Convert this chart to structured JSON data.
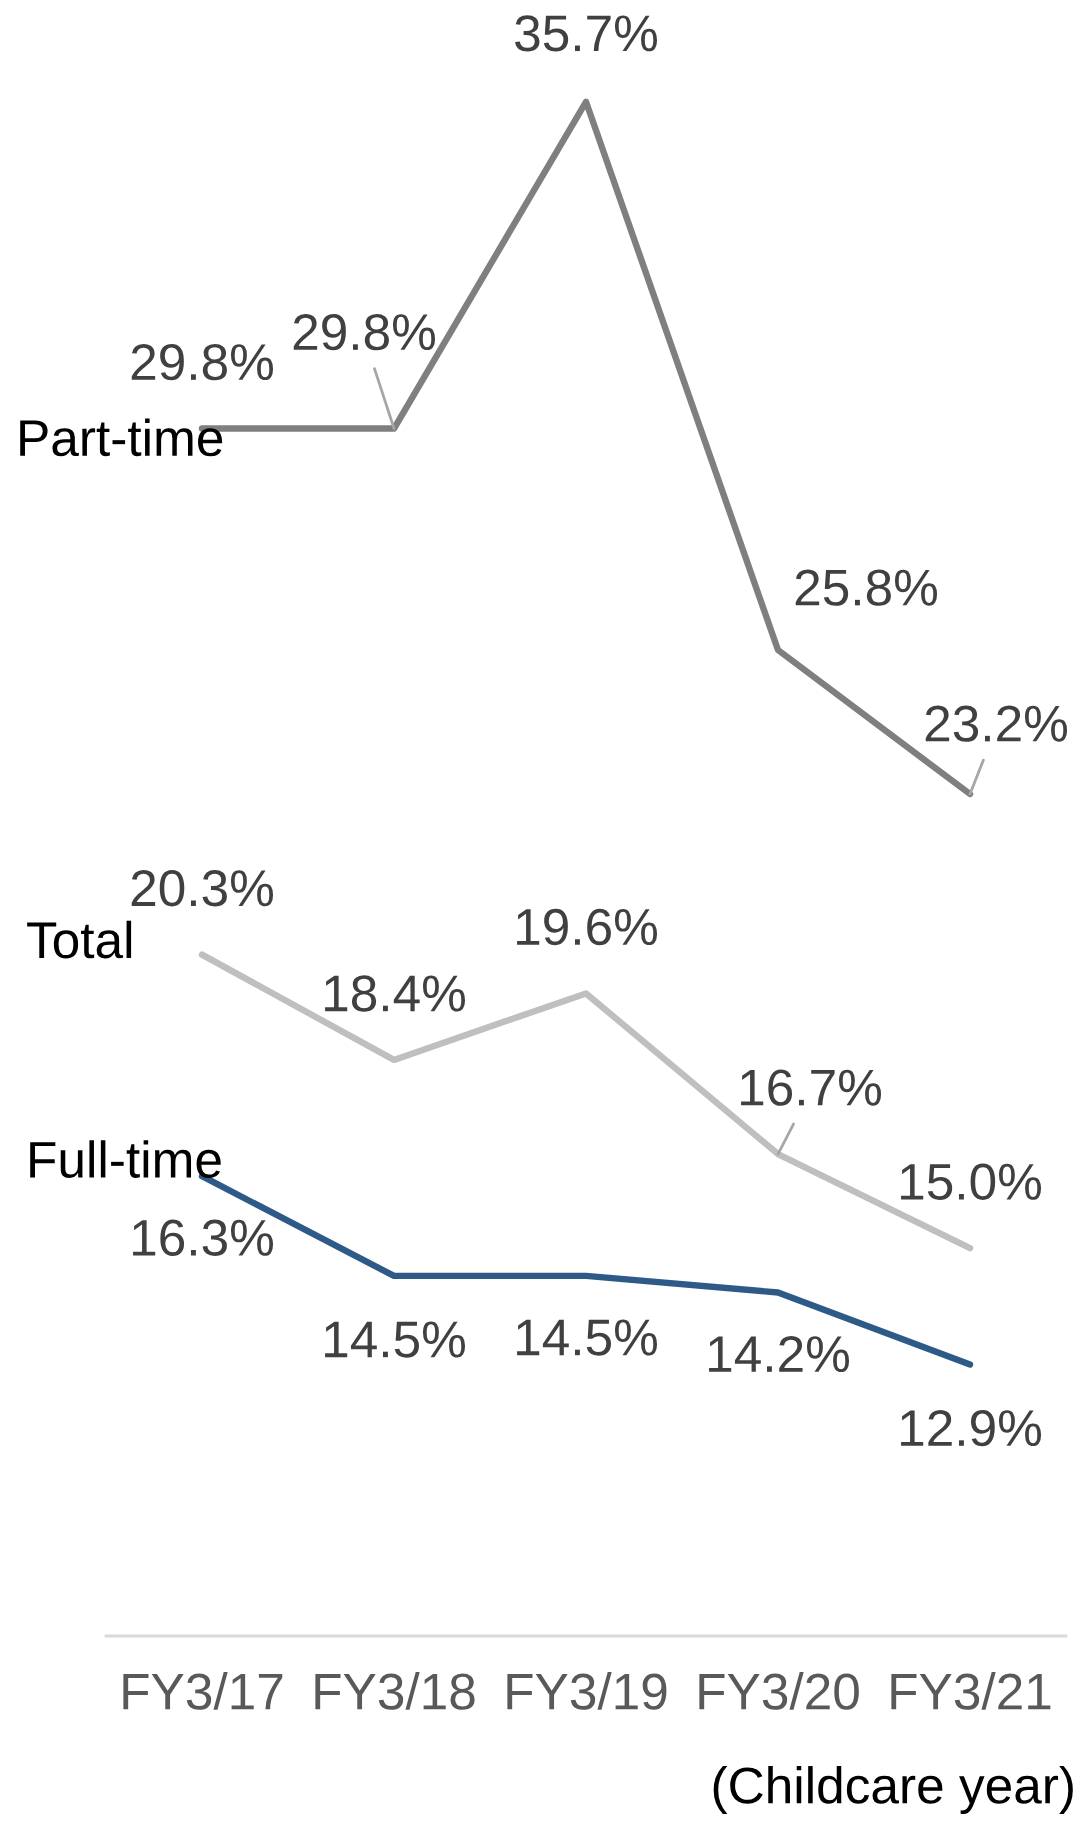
{
  "chart_data": {
    "type": "line",
    "categories": [
      "FY3/17",
      "FY3/18",
      "FY3/19",
      "FY3/20",
      "FY3/21"
    ],
    "series": [
      {
        "name": "Part-time",
        "color": "#7f7f7f",
        "values": [
          29.8,
          29.8,
          35.7,
          25.8,
          23.2
        ],
        "value_labels": [
          "29.8%",
          "29.8%",
          "35.7%",
          "25.8%",
          "23.2%"
        ]
      },
      {
        "name": "Total",
        "color": "#bfbfbf",
        "values": [
          20.3,
          18.4,
          19.6,
          16.7,
          15.0
        ],
        "value_labels": [
          "20.3%",
          "18.4%",
          "19.6%",
          "16.7%",
          "15.0%"
        ]
      },
      {
        "name": "Full-time",
        "color": "#2e5a88",
        "values": [
          16.3,
          14.5,
          14.5,
          14.2,
          12.9
        ],
        "value_labels": [
          "16.3%",
          "14.5%",
          "14.5%",
          "14.2%",
          "12.9%"
        ]
      }
    ],
    "tick_labels": "x",
    "annotations": [
      "(Childcare year)"
    ]
  }
}
